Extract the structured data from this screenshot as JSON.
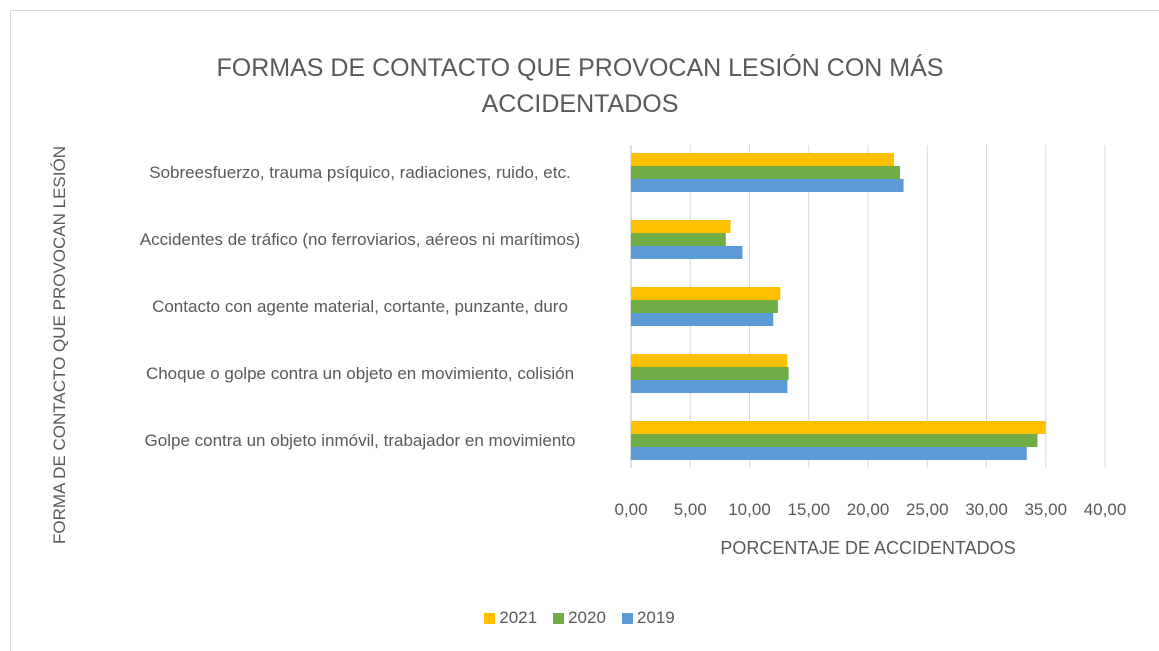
{
  "chart_data": {
    "type": "bar",
    "orientation": "horizontal",
    "title": "FORMAS DE CONTACTO QUE PROVOCAN LESIÓN CON MÁS ACCIDENTADOS",
    "x_label": "PORCENTAJE DE ACCIDENTADOS",
    "y_label": "FORMA DE CONTACTO QUE PROVOCAN LESIÓN",
    "categories": [
      "Sobreesfuerzo, trauma psíquico, radiaciones, ruido, etc.",
      "Accidentes de tráfico (no ferroviarios, aéreos ni marítimos)",
      "Contacto con agente material, cortante, punzante, duro",
      "Choque o golpe contra un objeto en movimiento, colisión",
      "Golpe contra un objeto inmóvil, trabajador en movimiento"
    ],
    "series": [
      {
        "name": "2021",
        "color": "#ffc000",
        "values": [
          22.2,
          8.4,
          12.6,
          13.2,
          35.0
        ]
      },
      {
        "name": "2020",
        "color": "#70ad47",
        "values": [
          22.7,
          8.0,
          12.4,
          13.3,
          34.3
        ]
      },
      {
        "name": "2019",
        "color": "#5b9bd5",
        "values": [
          23.0,
          9.4,
          12.0,
          13.2,
          33.4
        ]
      }
    ],
    "xlim": [
      0,
      40
    ],
    "xticks": [
      {
        "value": 0,
        "label": "0,00"
      },
      {
        "value": 5,
        "label": "5,00"
      },
      {
        "value": 10,
        "label": "10,00"
      },
      {
        "value": 15,
        "label": "15,00"
      },
      {
        "value": 20,
        "label": "20,00"
      },
      {
        "value": 25,
        "label": "25,00"
      },
      {
        "value": 30,
        "label": "30,00"
      },
      {
        "value": 35,
        "label": "35,00"
      },
      {
        "value": 40,
        "label": "40,00"
      }
    ],
    "grid": true,
    "legend": "bottom"
  }
}
